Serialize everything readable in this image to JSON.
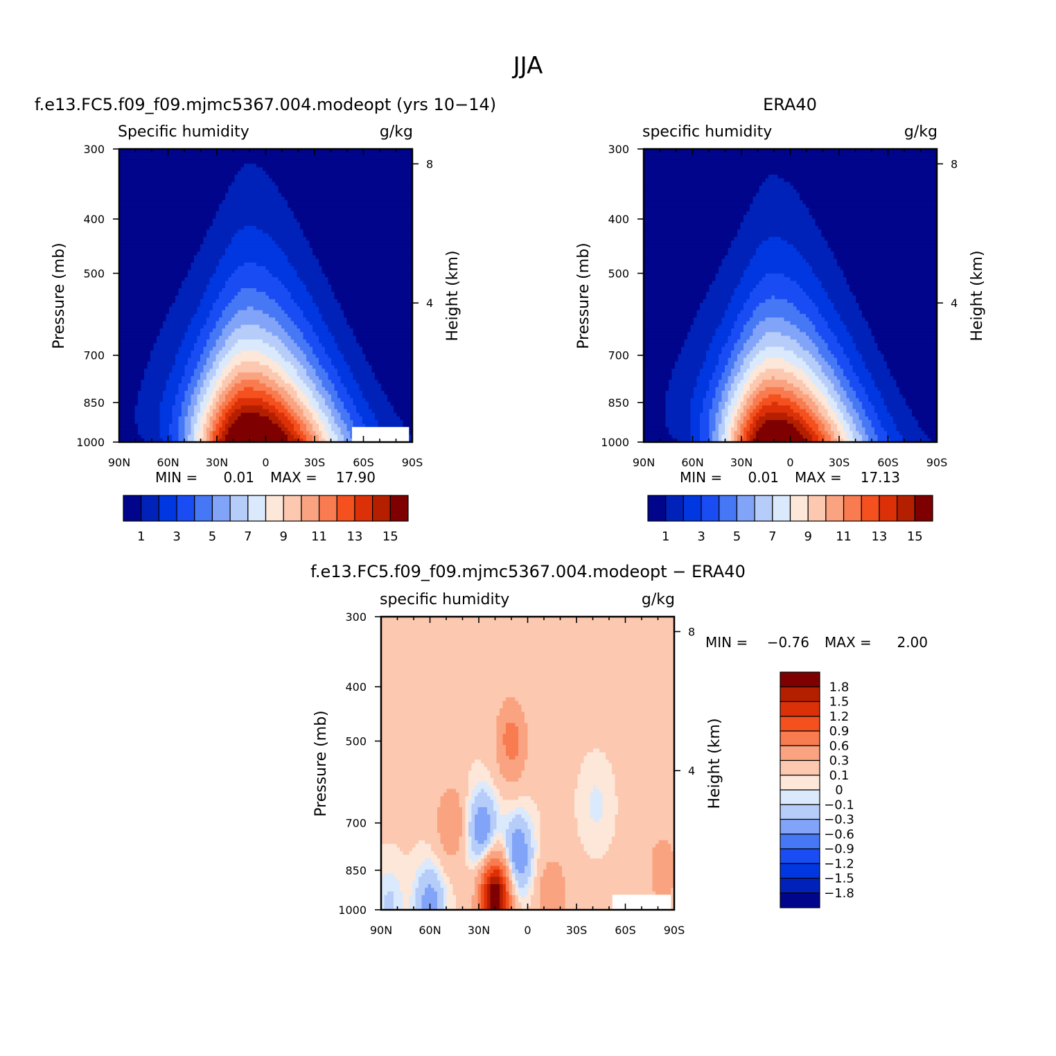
{
  "figure": {
    "title": "JJA"
  },
  "chart_data": [
    {
      "type": "heatmap",
      "panel_title": "f.e13.FC5.f09_f09.mjmc5367.004.modeopt (yrs 10−14)",
      "left_header": "Specific humidity",
      "right_header": "g/kg",
      "ylabel": "Pressure (mb)",
      "ylabel_right": "Height (km)",
      "x_ticks": [
        "90N",
        "60N",
        "30N",
        "0",
        "30S",
        "60S",
        "90S"
      ],
      "y_ticks": [
        "300",
        "400",
        "500",
        "700",
        "850",
        "1000"
      ],
      "y_right_ticks": [
        "8",
        "4"
      ],
      "ylim": [
        1000,
        300
      ],
      "y_scale": "log",
      "stats": {
        "min_label": "MIN =",
        "min": "0.01",
        "max_label": "MAX =",
        "max": "17.90"
      },
      "colorbar": {
        "orientation": "horizontal",
        "labels": [
          "1",
          "3",
          "5",
          "7",
          "9",
          "11",
          "13",
          "15"
        ],
        "colors": [
          "#00058b",
          "#0022b8",
          "#0037e0",
          "#1a4cf4",
          "#4678f6",
          "#82a4f8",
          "#b6cdfa",
          "#dbe9fc",
          "#fde7d9",
          "#fcc8b0",
          "#faa381",
          "#f97b50",
          "#f4511e",
          "#dc3108",
          "#b41f00",
          "#7e0000"
        ]
      },
      "field": {
        "lat_peak": 10,
        "peak_value": 17.9,
        "lower_width_deg": 34,
        "upper_width_deg": 16,
        "upper_amp": 5.5,
        "floor": 0.5,
        "scale_height_km": 2.3,
        "lat_asymmetry": 0.6,
        "lat_offset_deg": 0,
        "missing_region": "southern high latitudes, near surface"
      }
    },
    {
      "type": "heatmap",
      "panel_title": "ERA40",
      "left_header": "specific humidity",
      "right_header": "g/kg",
      "ylabel": "Pressure (mb)",
      "ylabel_right": "Height (km)",
      "x_ticks": [
        "90N",
        "60N",
        "30N",
        "0",
        "30S",
        "60S",
        "90S"
      ],
      "y_ticks": [
        "300",
        "400",
        "500",
        "700",
        "850",
        "1000"
      ],
      "y_right_ticks": [
        "8",
        "4"
      ],
      "ylim": [
        1000,
        300
      ],
      "y_scale": "log",
      "stats": {
        "min_label": "MIN =",
        "min": "0.01",
        "max_label": "MAX =",
        "max": "17.13"
      },
      "colorbar": {
        "orientation": "horizontal",
        "labels": [
          "1",
          "3",
          "5",
          "7",
          "9",
          "11",
          "13",
          "15"
        ],
        "colors": [
          "#00058b",
          "#0022b8",
          "#0037e0",
          "#1a4cf4",
          "#4678f6",
          "#82a4f8",
          "#b6cdfa",
          "#dbe9fc",
          "#fde7d9",
          "#fcc8b0",
          "#faa381",
          "#f97b50",
          "#f4511e",
          "#dc3108",
          "#b41f00",
          "#7e0000"
        ]
      },
      "field": {
        "lat_peak": 10,
        "peak_value": 17.13,
        "lower_width_deg": 32,
        "upper_width_deg": 15,
        "upper_amp": 5.2,
        "floor": 0.5,
        "scale_height_km": 2.2,
        "lat_asymmetry": 0.6,
        "lat_offset_deg": 0
      }
    },
    {
      "type": "heatmap",
      "panel_title": "f.e13.FC5.f09_f09.mjmc5367.004.modeopt − ERA40",
      "left_header": "specific humidity",
      "right_header": "g/kg",
      "ylabel": "Pressure (mb)",
      "ylabel_right": "Height (km)",
      "x_ticks": [
        "90N",
        "60N",
        "30N",
        "0",
        "30S",
        "60S",
        "90S"
      ],
      "y_ticks": [
        "300",
        "400",
        "500",
        "700",
        "850",
        "1000"
      ],
      "y_right_ticks": [
        "8",
        "4"
      ],
      "ylim": [
        1000,
        300
      ],
      "y_scale": "log",
      "stats": {
        "min_label": "MIN =",
        "min": "−0.76",
        "max_label": "MAX =",
        "max": "2.00"
      },
      "colorbar": {
        "orientation": "vertical",
        "labels": [
          "1.8",
          "1.5",
          "1.2",
          "0.9",
          "0.6",
          "0.3",
          "0.1",
          "0",
          "−0.1",
          "−0.3",
          "−0.6",
          "−0.9",
          "−1.2",
          "−1.5",
          "−1.8"
        ],
        "colors": [
          "#7e0000",
          "#b41f00",
          "#dc3108",
          "#f4511e",
          "#f97b50",
          "#faa381",
          "#fcc8b0",
          "#fde7d9",
          "#dbe9fc",
          "#b6cdfa",
          "#82a4f8",
          "#4678f6",
          "#1a4cf4",
          "#0037e0",
          "#0022b8",
          "#00058b"
        ]
      },
      "features": [
        {
          "lat": 47,
          "p": 700,
          "value": 0.42
        },
        {
          "lat": 28,
          "p": 720,
          "value": -0.62
        },
        {
          "lat": 20,
          "p": 950,
          "value": 2.0
        },
        {
          "lat": 6,
          "p": 800,
          "value": -0.65
        },
        {
          "lat": 10,
          "p": 500,
          "value": 0.62
        },
        {
          "lat": -15,
          "p": 950,
          "value": 0.45
        },
        {
          "lat": 60,
          "p": 980,
          "value": -0.55
        },
        {
          "lat": 85,
          "p": 980,
          "value": -0.25
        },
        {
          "lat": -42,
          "p": 650,
          "value": -0.15
        },
        {
          "lat": -83,
          "p": 850,
          "value": 0.35
        }
      ]
    }
  ]
}
